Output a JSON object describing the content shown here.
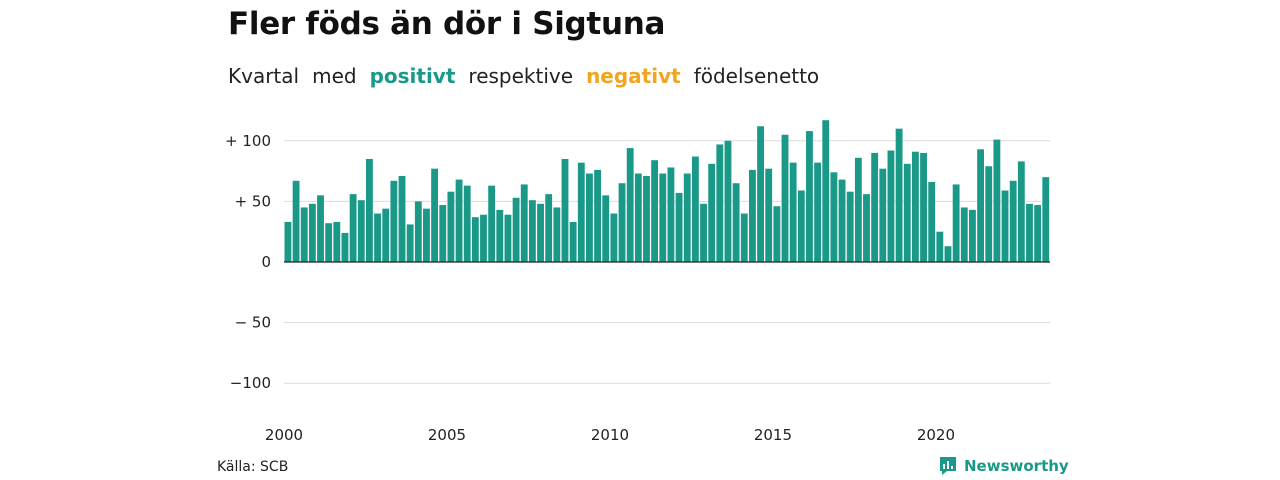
{
  "header": {
    "title": "Fler föds än dör i Sigtuna",
    "subtitle_words": [
      "Kvartal",
      "med",
      "positivt",
      "respektive",
      "negativt",
      "födelsenetto"
    ]
  },
  "colors": {
    "positive": "#1a9988",
    "negative": "#f2a51f",
    "grid": "#dcdcdc",
    "zero_line": "#222222"
  },
  "chart_data": {
    "type": "bar",
    "x_start": 2000.0,
    "x_step": 0.25,
    "values": [
      33,
      67,
      45,
      48,
      55,
      32,
      33,
      24,
      56,
      51,
      85,
      40,
      44,
      67,
      71,
      31,
      50,
      44,
      77,
      47,
      58,
      68,
      63,
      37,
      39,
      63,
      43,
      39,
      53,
      64,
      51,
      48,
      56,
      45,
      85,
      33,
      82,
      73,
      76,
      55,
      40,
      65,
      94,
      73,
      71,
      84,
      73,
      78,
      57,
      73,
      87,
      48,
      81,
      97,
      100,
      65,
      40,
      76,
      112,
      77,
      46,
      105,
      82,
      59,
      108,
      82,
      117,
      74,
      68,
      58,
      86,
      56,
      90,
      77,
      92,
      110,
      81,
      91,
      90,
      66,
      25,
      13,
      64,
      45,
      43,
      93,
      79,
      101,
      59,
      67,
      83,
      48,
      47,
      70
    ],
    "ylim": [
      -100,
      117
    ],
    "yticks": [
      100,
      50,
      0,
      -50,
      -100
    ],
    "ytick_labels": [
      "+ 100",
      "+  50",
      "0",
      "− 50",
      "−100"
    ],
    "xticks": [
      2000,
      2005,
      2010,
      2015,
      2020
    ],
    "xtick_labels": [
      "2000",
      "2005",
      "2010",
      "2015",
      "2020"
    ],
    "grid": true
  },
  "footer": {
    "source": "Källa: SCB",
    "brand": "Newsworthy"
  }
}
